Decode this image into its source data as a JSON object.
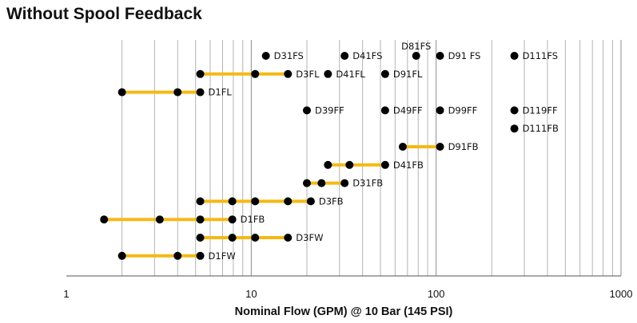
{
  "chart_data": {
    "type": "scatter",
    "title": "Without Spool Feedback",
    "xlabel": "Nominal Flow (GPM) @  10 Bar (145 PSI)",
    "ylabel": "",
    "x_scale": "log",
    "xlim": [
      1,
      1000
    ],
    "x_ticks": [
      "1",
      "10",
      "100",
      "1000"
    ],
    "grid": true,
    "colors": {
      "range_line": "#f5b915",
      "point": "#000000"
    },
    "series": [
      {
        "name": "D31FS",
        "row": 1,
        "points": [
          12
        ]
      },
      {
        "name": "D41FS",
        "row": 1,
        "points": [
          32
        ]
      },
      {
        "name": "D81FS",
        "row": 1,
        "points": [
          78
        ],
        "label_above": true
      },
      {
        "name": "D91 FS",
        "row": 1,
        "points": [
          105
        ]
      },
      {
        "name": "D111FS",
        "row": 1,
        "points": [
          265
        ]
      },
      {
        "name": "D3FL",
        "row": 2,
        "points": [
          5.3,
          10.5,
          15.8
        ],
        "range": true
      },
      {
        "name": "D41FL",
        "row": 2,
        "points": [
          26
        ]
      },
      {
        "name": "D91FL",
        "row": 2,
        "points": [
          53
        ]
      },
      {
        "name": "D1FL",
        "row": 3,
        "points": [
          2,
          4,
          5.3
        ],
        "range": true
      },
      {
        "name": "D39FF",
        "row": 4,
        "points": [
          20
        ]
      },
      {
        "name": "D49FF",
        "row": 4,
        "points": [
          53
        ]
      },
      {
        "name": "D99FF",
        "row": 4,
        "points": [
          105
        ]
      },
      {
        "name": "D119FF",
        "row": 4,
        "points": [
          265
        ]
      },
      {
        "name": "D111FB",
        "row": 5,
        "points": [
          265
        ]
      },
      {
        "name": "D91FB",
        "row": 6,
        "points": [
          66,
          105
        ],
        "range": true
      },
      {
        "name": "D41FB",
        "row": 7,
        "points": [
          26,
          34,
          53
        ],
        "range": true
      },
      {
        "name": "D31FB",
        "row": 8,
        "points": [
          20,
          24,
          32
        ],
        "range": true
      },
      {
        "name": "D3FB",
        "row": 9,
        "points": [
          5.3,
          7.9,
          10.5,
          15.8,
          21
        ],
        "range": true
      },
      {
        "name": "D1FB",
        "row": 10,
        "points": [
          1.6,
          3.2,
          5.3,
          7.9
        ],
        "range": true
      },
      {
        "name": "D3FW",
        "row": 11,
        "points": [
          5.3,
          7.9,
          10.5,
          15.8
        ],
        "range": true
      },
      {
        "name": "D1FW",
        "row": 12,
        "points": [
          2,
          4,
          5.3
        ],
        "range": true
      }
    ]
  }
}
